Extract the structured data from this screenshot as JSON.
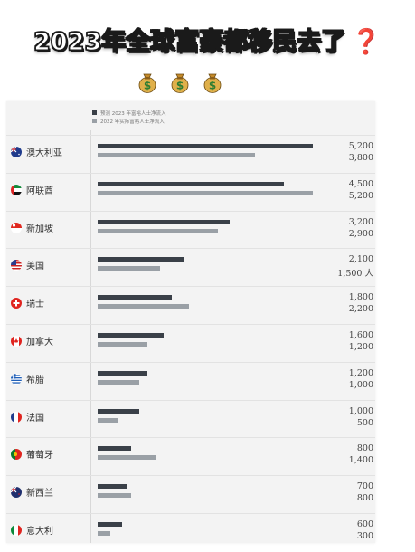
{
  "header": {
    "title": "2023年全球富豪都移民去了",
    "question_mark": "❓",
    "money_bags": [
      "money-bag-icon",
      "money-bag-icon",
      "money-bag-icon"
    ]
  },
  "colors": {
    "series_2023": "#3a4048",
    "series_2022": "#9aa0a6",
    "accent": "#e0241f"
  },
  "chart_data": {
    "type": "bar",
    "orientation": "horizontal",
    "legend_placement": "top",
    "series": [
      {
        "name": "预测 2023 年富裕人士净流入",
        "values": [
          5200,
          4500,
          3200,
          2100,
          1800,
          1600,
          1200,
          1000,
          800,
          700,
          600
        ]
      },
      {
        "name": "2022 年实际富裕人士净流入",
        "values": [
          3800,
          5200,
          2900,
          1500,
          2200,
          1200,
          1000,
          500,
          1400,
          800,
          300
        ]
      }
    ],
    "categories": [
      "澳大利亚",
      "阿联酋",
      "新加坡",
      "美国",
      "瑞士",
      "加拿大",
      "希腊",
      "法国",
      "葡萄牙",
      "新西兰",
      "意大利"
    ],
    "value_labels_2023": [
      "5,200",
      "4,500",
      "3,200",
      "2,100",
      "1,800",
      "1,600",
      "1,200",
      "1,000",
      "800",
      "700",
      "600"
    ],
    "value_labels_2022": [
      "3,800",
      "5,200",
      "2,900",
      "1,500 人",
      "2,200",
      "1,200",
      "1,000",
      "500",
      "1,400",
      "800",
      "300"
    ],
    "flags": [
      "australia-flag-icon",
      "uae-flag-icon",
      "singapore-flag-icon",
      "usa-flag-icon",
      "switzerland-flag-icon",
      "canada-flag-icon",
      "greece-flag-icon",
      "france-flag-icon",
      "portugal-flag-icon",
      "new-zealand-flag-icon",
      "italy-flag-icon"
    ],
    "xlim": [
      0,
      5400
    ],
    "grid": false
  }
}
